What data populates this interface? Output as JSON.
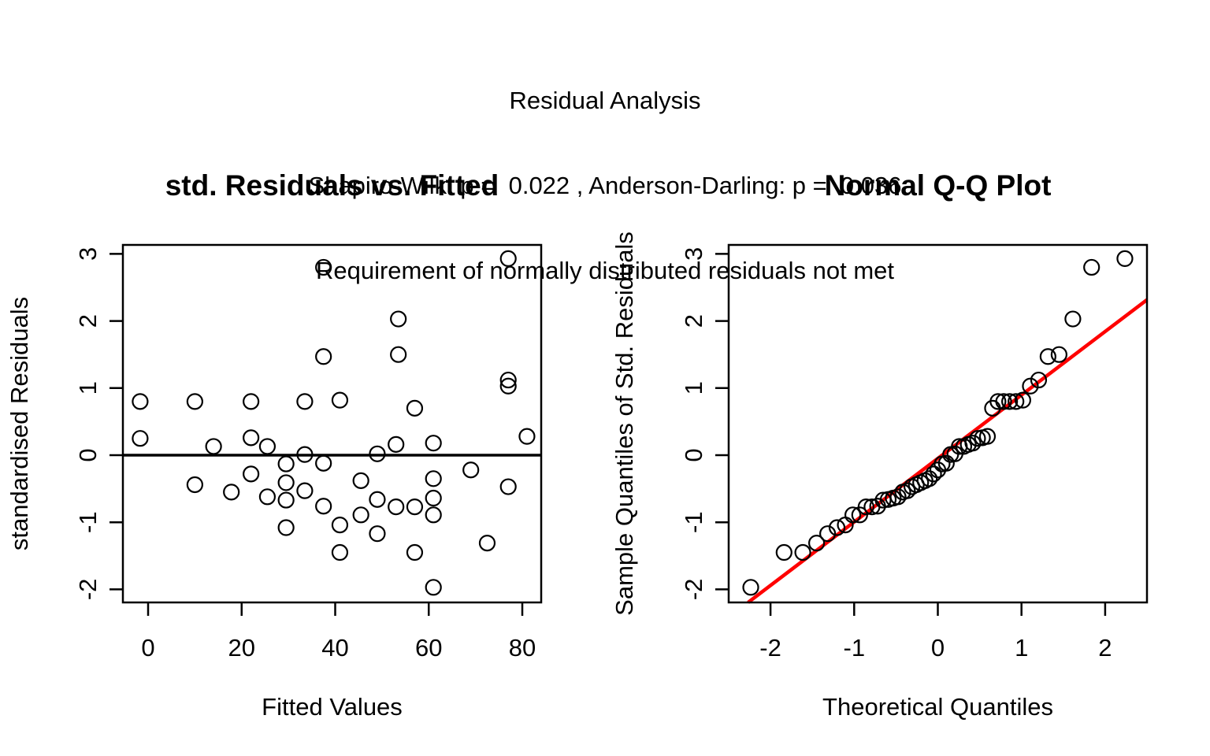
{
  "header": {
    "title": "Residual Analysis",
    "subtitle": "Shapiro-Wilk: p =  0.022 , Anderson-Darling: p =  0.036",
    "note": "Requirement of normally distributed residuals not met",
    "tests": {
      "shapiro_wilk_p": 0.022,
      "anderson_darling_p": 0.036
    }
  },
  "colors": {
    "foreground": "#000000",
    "background": "#ffffff",
    "qq_line": "#ff0000"
  },
  "chart_data": [
    {
      "type": "scatter",
      "title": "std. Residuals vs. Fitted",
      "xlabel": "Fitted Values",
      "ylabel": "standardised Residuals",
      "xlim": [
        -5.39,
        84.04
      ],
      "ylim": [
        -2.195,
        3.134
      ],
      "xticks": [
        0,
        20,
        40,
        60,
        80
      ],
      "yticks": [
        -2,
        -1,
        0,
        1,
        2,
        3
      ],
      "grid": false,
      "legend": false,
      "hline": 0,
      "marker": "open-circle",
      "points": [
        [
          37.5,
          2.8
        ],
        [
          77,
          2.93
        ],
        [
          53.5,
          2.03
        ],
        [
          37.5,
          1.47
        ],
        [
          53.5,
          1.5
        ],
        [
          77,
          1.12
        ],
        [
          77,
          1.03
        ],
        [
          -1.7,
          0.8
        ],
        [
          10,
          0.8
        ],
        [
          22,
          0.8
        ],
        [
          33.5,
          0.8
        ],
        [
          41,
          0.82
        ],
        [
          57,
          0.7
        ],
        [
          -1.7,
          0.25
        ],
        [
          22,
          0.26
        ],
        [
          81,
          0.28
        ],
        [
          14,
          0.13
        ],
        [
          25.5,
          0.13
        ],
        [
          53,
          0.16
        ],
        [
          61,
          0.18
        ],
        [
          49,
          0.02
        ],
        [
          33.5,
          0.01
        ],
        [
          29.5,
          -0.13
        ],
        [
          37.5,
          -0.12
        ],
        [
          69,
          -0.22
        ],
        [
          22,
          -0.28
        ],
        [
          61,
          -0.35
        ],
        [
          45.5,
          -0.38
        ],
        [
          10,
          -0.44
        ],
        [
          29.5,
          -0.41
        ],
        [
          77,
          -0.47
        ],
        [
          17.8,
          -0.55
        ],
        [
          33.5,
          -0.53
        ],
        [
          25.5,
          -0.62
        ],
        [
          61,
          -0.64
        ],
        [
          49,
          -0.66
        ],
        [
          29.5,
          -0.67
        ],
        [
          37.5,
          -0.76
        ],
        [
          53,
          -0.77
        ],
        [
          57,
          -0.77
        ],
        [
          45.5,
          -0.89
        ],
        [
          61,
          -0.89
        ],
        [
          41,
          -1.04
        ],
        [
          29.5,
          -1.08
        ],
        [
          49,
          -1.17
        ],
        [
          72.5,
          -1.31
        ],
        [
          41,
          -1.45
        ],
        [
          57,
          -1.45
        ],
        [
          61,
          -1.97
        ]
      ]
    },
    {
      "type": "scatter",
      "title": "Normal Q-Q Plot",
      "xlabel": "Theoretical Quantiles",
      "ylabel": "Sample Quantiles of Std. Residuals",
      "xlim": [
        -2.5,
        2.5
      ],
      "ylim": [
        -2.195,
        3.134
      ],
      "xticks": [
        -2,
        -1,
        0,
        1,
        2
      ],
      "yticks": [
        -2,
        -1,
        0,
        1,
        2,
        3
      ],
      "grid": false,
      "legend": false,
      "marker": "open-circle",
      "line": {
        "x1": -2.268,
        "y1": -2.195,
        "x2": 2.5,
        "y2": 2.316,
        "color": "#ff0000"
      },
      "points": [
        [
          -2.236,
          -1.97
        ],
        [
          -1.838,
          -1.45
        ],
        [
          -1.614,
          -1.45
        ],
        [
          -1.449,
          -1.31
        ],
        [
          -1.317,
          -1.17
        ],
        [
          -1.205,
          -1.08
        ],
        [
          -1.106,
          -1.04
        ],
        [
          -1.016,
          -0.89
        ],
        [
          -0.934,
          -0.89
        ],
        [
          -0.858,
          -0.77
        ],
        [
          -0.787,
          -0.77
        ],
        [
          -0.719,
          -0.76
        ],
        [
          -0.654,
          -0.67
        ],
        [
          -0.593,
          -0.66
        ],
        [
          -0.533,
          -0.64
        ],
        [
          -0.475,
          -0.62
        ],
        [
          -0.419,
          -0.55
        ],
        [
          -0.364,
          -0.53
        ],
        [
          -0.31,
          -0.47
        ],
        [
          -0.257,
          -0.44
        ],
        [
          -0.205,
          -0.41
        ],
        [
          -0.153,
          -0.38
        ],
        [
          -0.102,
          -0.35
        ],
        [
          -0.051,
          -0.28
        ],
        [
          0,
          -0.22
        ],
        [
          0.051,
          -0.13
        ],
        [
          0.102,
          -0.12
        ],
        [
          0.153,
          0.01
        ],
        [
          0.205,
          0.02
        ],
        [
          0.257,
          0.13
        ],
        [
          0.31,
          0.13
        ],
        [
          0.364,
          0.16
        ],
        [
          0.419,
          0.18
        ],
        [
          0.475,
          0.25
        ],
        [
          0.533,
          0.26
        ],
        [
          0.593,
          0.28
        ],
        [
          0.654,
          0.7
        ],
        [
          0.719,
          0.8
        ],
        [
          0.787,
          0.8
        ],
        [
          0.858,
          0.8
        ],
        [
          0.934,
          0.8
        ],
        [
          1.016,
          0.82
        ],
        [
          1.106,
          1.03
        ],
        [
          1.205,
          1.12
        ],
        [
          1.317,
          1.47
        ],
        [
          1.449,
          1.5
        ],
        [
          1.614,
          2.03
        ],
        [
          1.838,
          2.8
        ],
        [
          2.236,
          2.93
        ]
      ]
    }
  ]
}
